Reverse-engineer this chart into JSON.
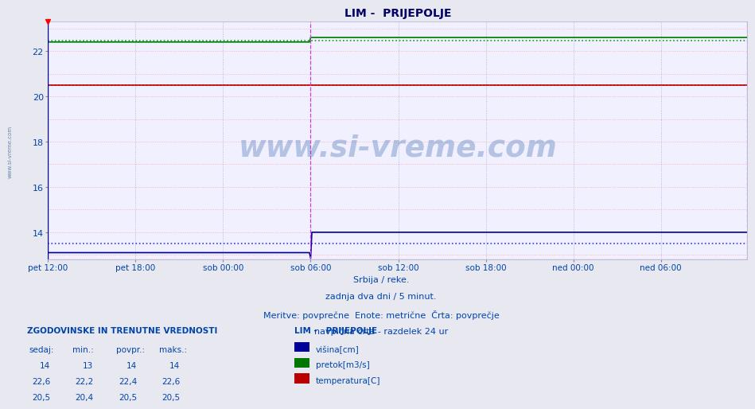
{
  "title": "LIM -  PRIJEPOLJE",
  "background_color": "#e8e8f0",
  "plot_bg_color": "#f0f0ff",
  "grid_color_h": "#ffaaaa",
  "grid_color_v": "#aaaadd",
  "title_color": "#000066",
  "text_color": "#0044aa",
  "num_points": 576,
  "split_point": 216,
  "ylim_min": 12.8,
  "ylim_max": 23.3,
  "yticks": [
    14,
    16,
    18,
    20,
    22
  ],
  "xtick_labels": [
    "pet 12:00",
    "pet 18:00",
    "sob 00:00",
    "sob 06:00",
    "sob 12:00",
    "sob 18:00",
    "ned 00:00",
    "ned 06:00"
  ],
  "xtick_positions": [
    0,
    72,
    144,
    216,
    288,
    360,
    432,
    504
  ],
  "blue_before": 13.1,
  "blue_after": 14.0,
  "blue_drop": 12.85,
  "green_before": 22.4,
  "green_after": 22.6,
  "red_val": 20.5,
  "blue_avg": 13.5,
  "green_avg": 22.45,
  "red_avg": 20.5,
  "blue_color": "#000099",
  "green_color": "#007700",
  "red_color": "#bb0000",
  "avg_dot_blue": "#3333ff",
  "avg_dot_green": "#00aa00",
  "avg_dot_red": "#ff2222",
  "vline_color": "#cc44cc",
  "watermark_text": "www.si-vreme.com",
  "watermark_color": "#1a4fa0",
  "watermark_alpha": 0.28,
  "footer_line1": "Srbija / reke.",
  "footer_line2": "zadnja dva dni / 5 minut.",
  "footer_line3": "Meritve: povprečne  Enote: metrične  Črta: povprečje",
  "footer_line4": "navpična črta - razdelek 24 ur",
  "legend_title": "LIM -   PRIJEPOLJE",
  "legend_items": [
    {
      "label": "višina[cm]",
      "color": "#000099"
    },
    {
      "label": "pretok[m3/s]",
      "color": "#007700"
    },
    {
      "label": "temperatura[C]",
      "color": "#bb0000"
    }
  ],
  "table_title": "ZGODOVINSKE IN TRENUTNE VREDNOSTI",
  "table_headers": [
    "sedaj:",
    "min.:",
    "povpr.:",
    "maks.:"
  ],
  "table_rows": [
    [
      "14",
      "13",
      "14",
      "14"
    ],
    [
      "22,6",
      "22,2",
      "22,4",
      "22,6"
    ],
    [
      "20,5",
      "20,4",
      "20,5",
      "20,5"
    ]
  ],
  "left_label": "www.si-vreme.com"
}
